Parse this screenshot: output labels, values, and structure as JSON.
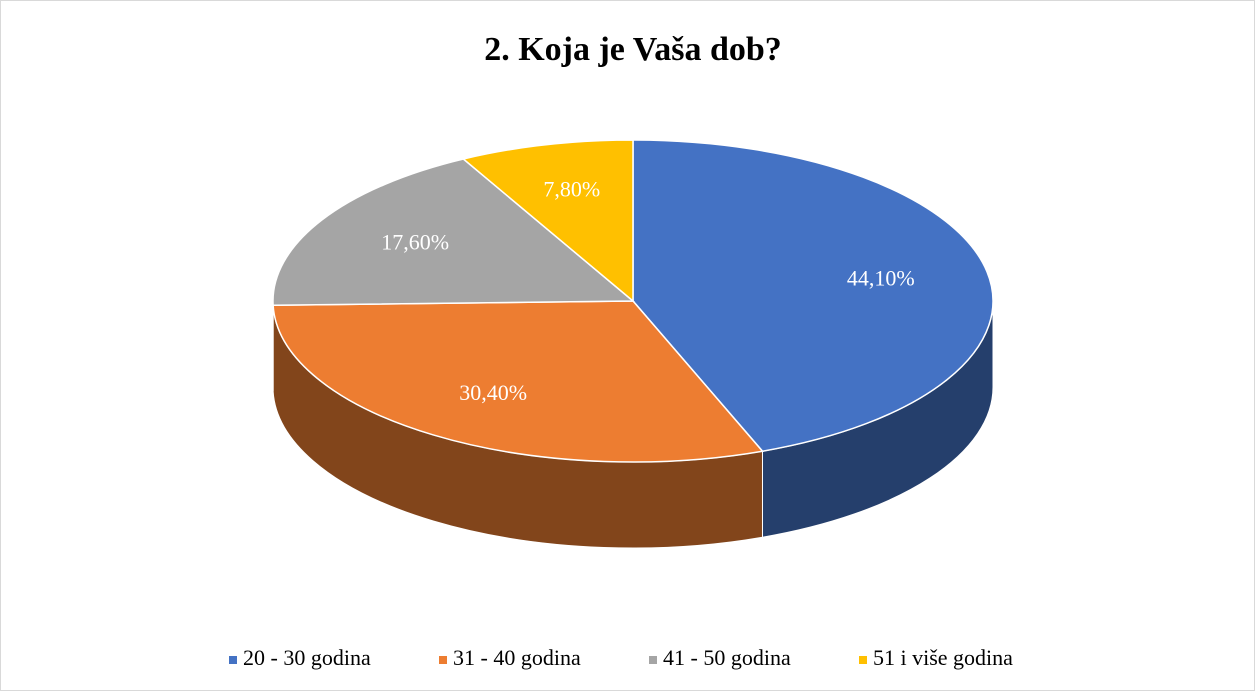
{
  "chart_data": {
    "type": "pie3d",
    "title": "2. Koja je Vaša dob?",
    "categories": [
      "20 - 30 godina",
      "31 - 40 godina",
      "41 - 50 godina",
      "51 i više godina"
    ],
    "values": [
      44.1,
      30.4,
      17.6,
      7.8
    ],
    "value_labels": [
      "44,10%",
      "30,40%",
      "17,60%",
      "7,80%"
    ],
    "colors": [
      "#4472c4",
      "#ed7d31",
      "#a5a5a5",
      "#ffc000"
    ],
    "legend": "bottom"
  }
}
